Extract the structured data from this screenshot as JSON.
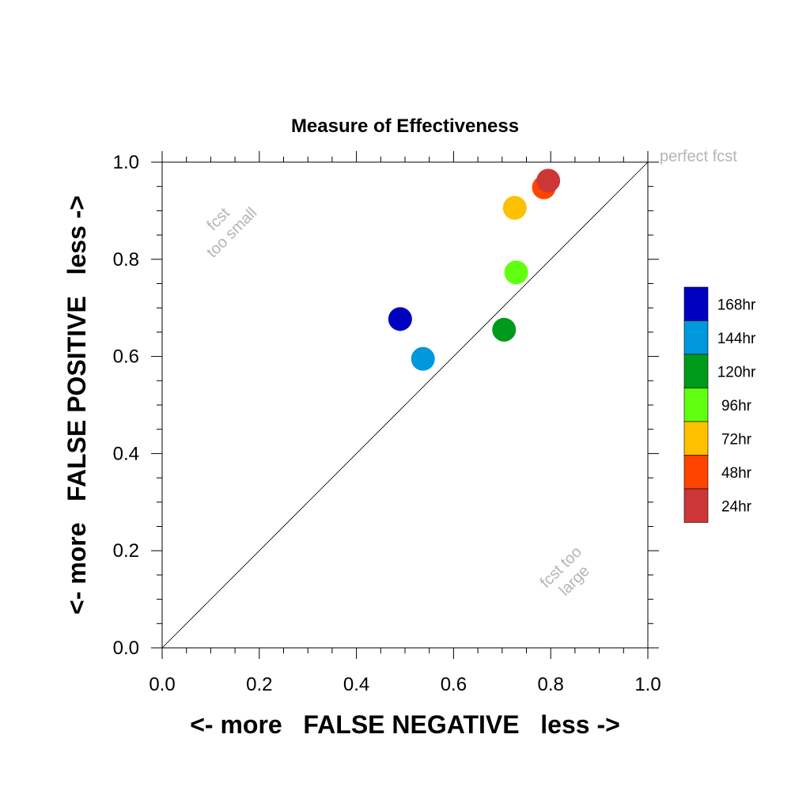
{
  "chart_data": {
    "type": "scatter",
    "title": "Measure of Effectiveness",
    "xlabel": "<- more   FALSE NEGATIVE   less ->",
    "ylabel": "<- more   FALSE POSITIVE   less ->",
    "xlim": [
      0.0,
      1.0
    ],
    "ylim": [
      0.0,
      1.0
    ],
    "xticks": [
      "0.0",
      "0.2",
      "0.4",
      "0.6",
      "0.8",
      "1.0"
    ],
    "yticks": [
      "0.0",
      "0.2",
      "0.4",
      "0.6",
      "0.8",
      "1.0"
    ],
    "grid": false,
    "legend_position": "right",
    "diagonal": true,
    "annotations": {
      "perfect": "perfect fcst",
      "small_line1": "fcst",
      "small_line2": "too small",
      "large_line1": "fcst too",
      "large_line2": "large"
    },
    "series": [
      {
        "name": "168hr",
        "color": "#0000c0",
        "x": 0.49,
        "y": 0.677
      },
      {
        "name": "144hr",
        "color": "#0098dc",
        "x": 0.537,
        "y": 0.595
      },
      {
        "name": "120hr",
        "color": "#009a1a",
        "x": 0.704,
        "y": 0.655
      },
      {
        "name": "96hr",
        "color": "#60ff10",
        "x": 0.729,
        "y": 0.773
      },
      {
        "name": "72hr",
        "color": "#ffc000",
        "x": 0.726,
        "y": 0.906
      },
      {
        "name": "48hr",
        "color": "#ff4400",
        "x": 0.786,
        "y": 0.948
      },
      {
        "name": "24hr",
        "color": "#cc3636",
        "x": 0.795,
        "y": 0.962
      }
    ]
  }
}
